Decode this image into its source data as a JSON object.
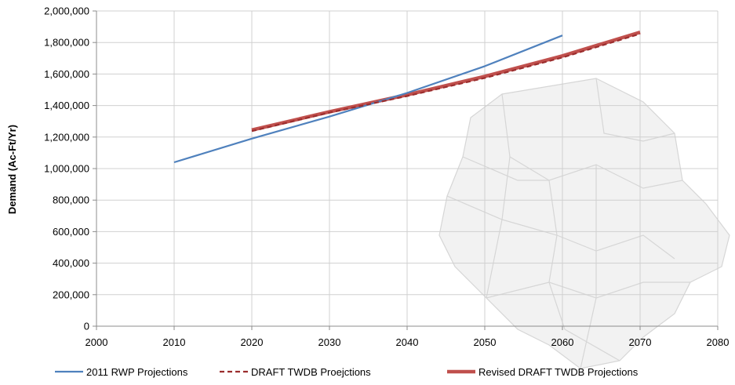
{
  "chart_data": {
    "type": "line",
    "title": "",
    "xlabel": "",
    "ylabel": "Demand (Ac-Ft/Yr)",
    "xlim": [
      2000,
      2080
    ],
    "ylim": [
      0,
      2000000
    ],
    "x_ticks": [
      2000,
      2010,
      2020,
      2030,
      2040,
      2050,
      2060,
      2070,
      2080
    ],
    "y_ticks": [
      0,
      200000,
      400000,
      600000,
      800000,
      1000000,
      1200000,
      1400000,
      1600000,
      1800000,
      2000000
    ],
    "x_tick_labels": [
      "2000",
      "2010",
      "2020",
      "2030",
      "2040",
      "2050",
      "2060",
      "2070",
      "2080"
    ],
    "y_tick_labels": [
      "0",
      "200,000",
      "400,000",
      "600,000",
      "800,000",
      "1,000,000",
      "1,200,000",
      "1,400,000",
      "1,600,000",
      "1,800,000",
      "2,000,000"
    ],
    "grid": true,
    "legend_position": "bottom",
    "series": [
      {
        "name": "2011 RWP Projections",
        "color": "#4f81bd",
        "style": "solid",
        "x": [
          2010,
          2020,
          2030,
          2040,
          2050,
          2060
        ],
        "y": [
          1040000,
          1190000,
          1330000,
          1480000,
          1650000,
          1845000
        ]
      },
      {
        "name": "DRAFT TWDB Proejctions",
        "color": "#9b2d2d",
        "style": "dashed",
        "x": [
          2020,
          2030,
          2040,
          2050,
          2060,
          2070
        ],
        "y": [
          1238000,
          1355000,
          1460000,
          1575000,
          1705000,
          1855000
        ]
      },
      {
        "name": "Revised DRAFT TWDB Projections",
        "color": "#c0504d",
        "style": "thick",
        "x": [
          2020,
          2030,
          2040,
          2050,
          2060,
          2070
        ],
        "y": [
          1245000,
          1360000,
          1468000,
          1585000,
          1715000,
          1865000
        ]
      }
    ]
  }
}
